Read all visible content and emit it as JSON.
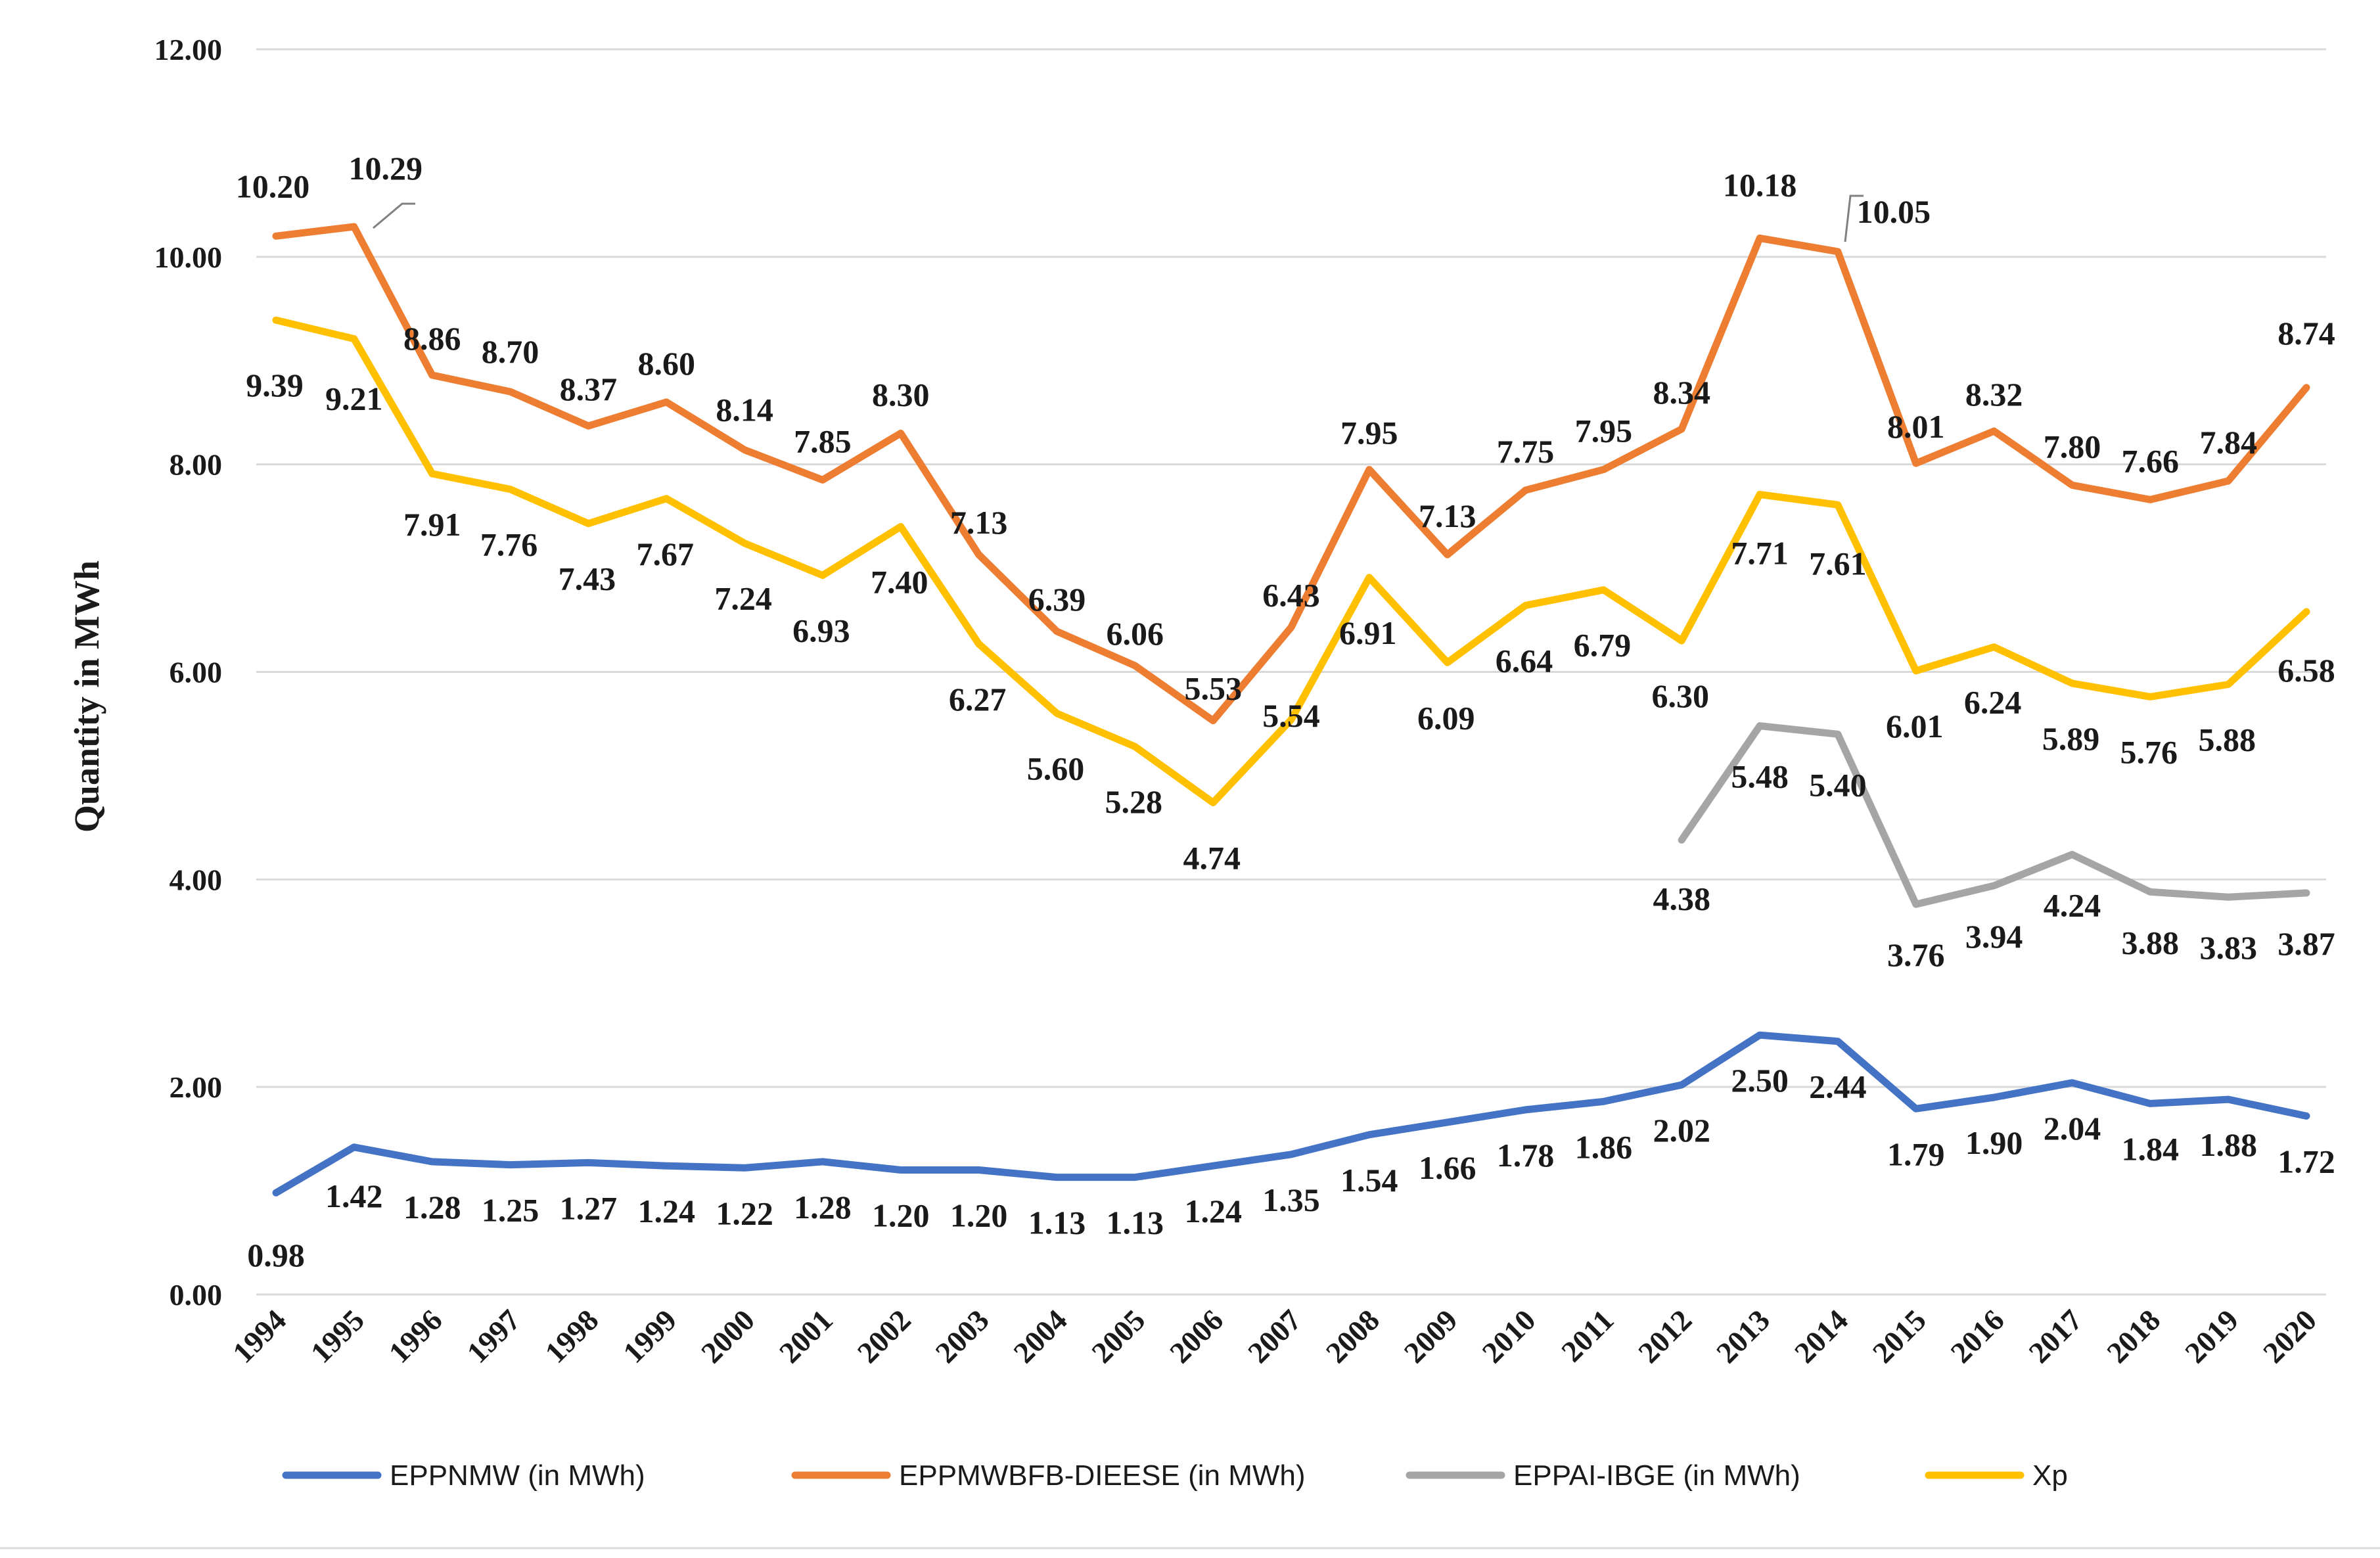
{
  "chart_data": {
    "type": "line",
    "title": "",
    "xlabel": "",
    "ylabel": "Quantity in MWh",
    "ylim": [
      0,
      12
    ],
    "ytick_labels": [
      "0.00",
      "2.00",
      "4.00",
      "6.00",
      "8.00",
      "10.00",
      "12.00"
    ],
    "grid": "horizontal",
    "legend_position": "bottom",
    "categories": [
      "1994",
      "1995",
      "1996",
      "1997",
      "1998",
      "1999",
      "2000",
      "2001",
      "2002",
      "2003",
      "2004",
      "2005",
      "2006",
      "2007",
      "2008",
      "2009",
      "2010",
      "2011",
      "2012",
      "2013",
      "2014",
      "2015",
      "2016",
      "2017",
      "2018",
      "2019",
      "2020"
    ],
    "series": [
      {
        "name": "EPPNMW (in MWh)",
        "color": "#4472C4",
        "values": [
          0.98,
          1.42,
          1.28,
          1.25,
          1.27,
          1.24,
          1.22,
          1.28,
          1.2,
          1.2,
          1.13,
          1.13,
          1.24,
          1.35,
          1.54,
          1.66,
          1.78,
          1.86,
          2.02,
          2.5,
          2.44,
          1.79,
          1.9,
          2.04,
          1.84,
          1.88,
          1.72
        ],
        "labels": [
          "0.98",
          "1.42",
          "1.28",
          "1.25",
          "1.27",
          "1.24",
          "1.22",
          "1.28",
          "1.20",
          "1.20",
          "1.13",
          "1.13",
          "1.24",
          "1.35",
          "1.54",
          "1.66",
          "1.78",
          "1.86",
          "2.02",
          "2.50",
          "2.44",
          "1.79",
          "1.90",
          "2.04",
          "1.84",
          "1.88",
          "1.72"
        ]
      },
      {
        "name": "EPPMWBFB-DIEESE (in MWh)",
        "color": "#ED7D31",
        "values": [
          10.2,
          10.29,
          8.86,
          8.7,
          8.37,
          8.6,
          8.14,
          7.85,
          8.3,
          7.13,
          6.39,
          6.06,
          5.53,
          6.43,
          7.95,
          7.13,
          7.75,
          7.95,
          8.34,
          10.18,
          10.05,
          8.01,
          8.32,
          7.8,
          7.66,
          7.84,
          8.74
        ],
        "labels": [
          "10.20",
          "10.29",
          "8.86",
          "8.70",
          "8.37",
          "8.60",
          "8.14",
          "7.85",
          "8.30",
          "7.13",
          "6.39",
          "6.06",
          "5.53",
          "6.43",
          "7.95",
          "7.13",
          "7.75",
          "7.95",
          "8.34",
          "10.18",
          "10.05",
          "8.01",
          "8.32",
          "7.80",
          "7.66",
          "7.84",
          "8.74"
        ]
      },
      {
        "name": "EPPAI-IBGE (in MWh)",
        "color": "#A5A5A5",
        "values": [
          null,
          null,
          null,
          null,
          null,
          null,
          null,
          null,
          null,
          null,
          null,
          null,
          null,
          null,
          null,
          null,
          null,
          null,
          4.38,
          5.48,
          5.4,
          3.76,
          3.94,
          4.24,
          3.88,
          3.83,
          3.87
        ],
        "labels": [
          null,
          null,
          null,
          null,
          null,
          null,
          null,
          null,
          null,
          null,
          null,
          null,
          null,
          null,
          null,
          null,
          null,
          null,
          "4.38",
          "5.48",
          "5.40",
          "3.76",
          "3.94",
          "4.24",
          "3.88",
          "3.83",
          "3.87"
        ]
      },
      {
        "name": "Xp",
        "color": "#FFC000",
        "values": [
          9.39,
          9.21,
          7.91,
          7.76,
          7.43,
          7.67,
          7.24,
          6.93,
          7.4,
          6.27,
          5.6,
          5.28,
          4.74,
          5.54,
          6.91,
          6.09,
          6.64,
          6.79,
          6.3,
          7.71,
          7.61,
          6.01,
          6.24,
          5.89,
          5.76,
          5.88,
          6.58
        ],
        "labels": [
          "9.39",
          "9.21",
          "7.91",
          "7.76",
          "7.43",
          "7.67",
          "7.24",
          "6.93",
          "7.40",
          "6.27",
          "5.60",
          "5.28",
          "4.74",
          "5.54",
          "6.91",
          "6.09",
          "6.64",
          "6.79",
          "6.30",
          "7.71",
          "7.61",
          "6.01",
          "6.24",
          "5.89",
          "5.76",
          "5.88",
          "6.58"
        ]
      }
    ]
  }
}
